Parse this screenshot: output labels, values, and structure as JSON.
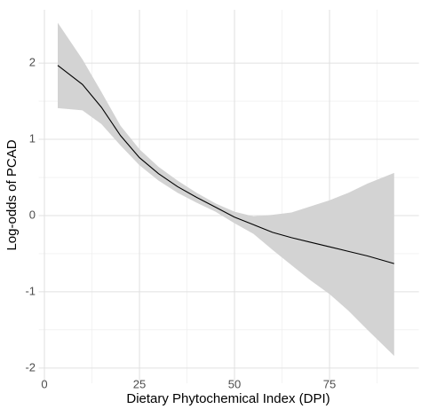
{
  "chart_data": {
    "type": "line",
    "x_label": "Dietary Phytochemical Index (DPI)",
    "y_label": "Log-odds of PCAD",
    "x": [
      3.5,
      10,
      15,
      20,
      25,
      30,
      35,
      40,
      45,
      50,
      55,
      60,
      65,
      70,
      75,
      80,
      85,
      92
    ],
    "values": [
      1.97,
      1.72,
      1.42,
      1.05,
      0.76,
      0.55,
      0.38,
      0.24,
      0.11,
      -0.02,
      -0.12,
      -0.22,
      -0.29,
      -0.35,
      -0.41,
      -0.47,
      -0.53,
      -0.63
    ],
    "upper": [
      2.53,
      2.05,
      1.62,
      1.18,
      0.87,
      0.64,
      0.46,
      0.3,
      0.16,
      0.05,
      -0.01,
      0.01,
      0.04,
      0.12,
      0.2,
      0.3,
      0.42,
      0.56
    ],
    "lower": [
      1.41,
      1.38,
      1.2,
      0.92,
      0.66,
      0.46,
      0.3,
      0.17,
      0.05,
      -0.1,
      -0.24,
      -0.45,
      -0.65,
      -0.85,
      -1.03,
      -1.25,
      -1.5,
      -1.84
    ],
    "color": "#000000",
    "band_color": "#d3d3d3",
    "xlim": [
      -1.5,
      98.5
    ],
    "xticks": [
      0,
      25,
      50,
      75
    ],
    "xminor_ticks": [
      12.5,
      37.5,
      62.5,
      87.5
    ],
    "ylim": [
      -2.2,
      2.7
    ],
    "yticks": [
      -2,
      -1,
      0,
      1,
      2
    ],
    "yminor_ticks": [
      -1.5,
      -0.5,
      0.5,
      1.5
    ],
    "grid": true
  }
}
